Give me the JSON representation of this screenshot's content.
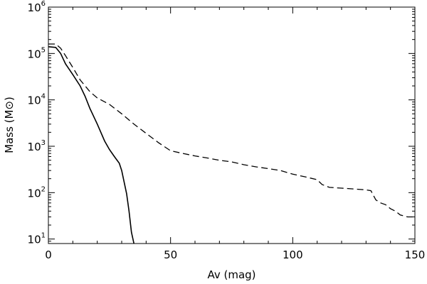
{
  "chart_data": {
    "type": "line",
    "title": "",
    "xlabel": "Av (mag)",
    "ylabel_prefix": "Mass (M",
    "ylabel_symbol": "⊙",
    "ylabel_suffix": ")",
    "xlim": [
      0,
      150
    ],
    "ylim": [
      8,
      1000000
    ],
    "yscale": "log",
    "grid": false,
    "legend": "none",
    "x_ticks": [
      0,
      50,
      100,
      150
    ],
    "x_tick_labels": [
      "0",
      "50",
      "100",
      "150"
    ],
    "y_ticks": [
      10,
      100,
      1000,
      10000,
      100000,
      1000000
    ],
    "y_tick_labels": [
      {
        "base": "10",
        "exp": "1"
      },
      {
        "base": "10",
        "exp": "2"
      },
      {
        "base": "10",
        "exp": "3"
      },
      {
        "base": "10",
        "exp": "4"
      },
      {
        "base": "10",
        "exp": "5"
      },
      {
        "base": "10",
        "exp": "6"
      }
    ],
    "series": [
      {
        "style": "solid",
        "points": [
          [
            0,
            140000
          ],
          [
            3,
            135000
          ],
          [
            5,
            100000
          ],
          [
            7,
            60000
          ],
          [
            10,
            35000
          ],
          [
            13,
            20000
          ],
          [
            15,
            12000
          ],
          [
            17,
            6500
          ],
          [
            20,
            3000
          ],
          [
            23,
            1300
          ],
          [
            25,
            850
          ],
          [
            27,
            600
          ],
          [
            29,
            430
          ],
          [
            30,
            300
          ],
          [
            31,
            170
          ],
          [
            32,
            95
          ],
          [
            33,
            40
          ],
          [
            34,
            14
          ],
          [
            35,
            8
          ]
        ]
      },
      {
        "style": "dashed",
        "points": [
          [
            0,
            160000
          ],
          [
            3,
            160000
          ],
          [
            5,
            130000
          ],
          [
            7,
            90000
          ],
          [
            10,
            50000
          ],
          [
            13,
            27000
          ],
          [
            17,
            15000
          ],
          [
            20,
            11000
          ],
          [
            25,
            8000
          ],
          [
            30,
            5000
          ],
          [
            35,
            3000
          ],
          [
            40,
            1900
          ],
          [
            45,
            1200
          ],
          [
            50,
            800
          ],
          [
            55,
            700
          ],
          [
            60,
            620
          ],
          [
            65,
            560
          ],
          [
            70,
            500
          ],
          [
            75,
            460
          ],
          [
            80,
            400
          ],
          [
            85,
            360
          ],
          [
            90,
            330
          ],
          [
            95,
            300
          ],
          [
            100,
            250
          ],
          [
            105,
            220
          ],
          [
            110,
            190
          ],
          [
            112,
            150
          ],
          [
            115,
            130
          ],
          [
            120,
            125
          ],
          [
            125,
            120
          ],
          [
            130,
            115
          ],
          [
            132,
            110
          ],
          [
            134,
            70
          ],
          [
            136,
            60
          ],
          [
            138,
            55
          ],
          [
            140,
            45
          ],
          [
            142,
            40
          ],
          [
            144,
            33
          ],
          [
            147,
            30
          ],
          [
            150,
            30
          ]
        ]
      }
    ]
  }
}
